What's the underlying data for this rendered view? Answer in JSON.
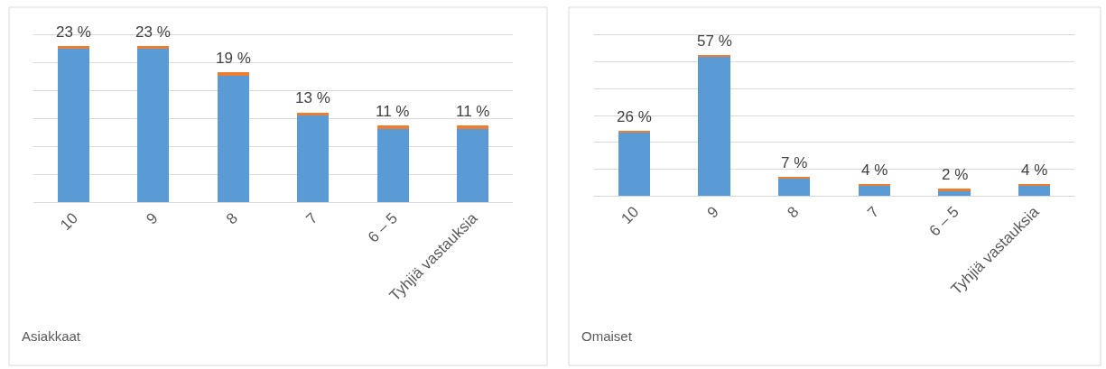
{
  "chart_data": [
    {
      "type": "bar",
      "title": "Asiakkaat",
      "stacked": true,
      "categories": [
        "10",
        "9",
        "8",
        "7",
        "6 – 5",
        "Tyhjiä vastauksia"
      ],
      "series": [
        {
          "color": "#5b9bd5",
          "values": [
            23,
            23,
            19,
            13,
            11,
            11
          ],
          "value_labels": [
            "23 %",
            "23 %",
            "19 %",
            "13 %",
            "11 %",
            "11 %"
          ]
        },
        {
          "color": "#ed7d31",
          "values": [
            0.5,
            0.5,
            0.5,
            0.5,
            0.5,
            0.5
          ]
        }
      ],
      "ylim": [
        0,
        25.1
      ],
      "yticks": [
        {
          "value": 0,
          "label": null
        },
        {
          "value": 4.18,
          "label": null
        },
        {
          "value": 8.37,
          "label": null
        },
        {
          "value": 12.55,
          "label": null
        },
        {
          "value": 16.73,
          "label": null
        },
        {
          "value": 20.92,
          "label": null
        }
      ],
      "grid": "y",
      "tick_labels": "x"
    },
    {
      "type": "bar",
      "title": "Omaiset",
      "stacked": true,
      "categories": [
        "10",
        "9",
        "8",
        "7",
        "6 – 5",
        "Tyhjiä vastauksia"
      ],
      "series": [
        {
          "color": "#5b9bd5",
          "values": [
            26,
            57,
            7,
            4,
            2,
            4
          ],
          "value_labels": [
            "26 %",
            "57 %",
            "7 %",
            "4 %",
            "2 %",
            "4 %"
          ]
        },
        {
          "color": "#ed7d31",
          "values": [
            0.8,
            0.8,
            0.8,
            0.8,
            0.8,
            0.8
          ]
        }
      ],
      "ylim": [
        0,
        66
      ],
      "yticks": [
        {
          "value": 0,
          "label": null
        },
        {
          "value": 11,
          "label": null
        },
        {
          "value": 22,
          "label": null
        },
        {
          "value": 33,
          "label": null
        },
        {
          "value": 44,
          "label": null
        },
        {
          "value": 55,
          "label": null
        }
      ],
      "grid": "y",
      "tick_labels": "x"
    }
  ]
}
